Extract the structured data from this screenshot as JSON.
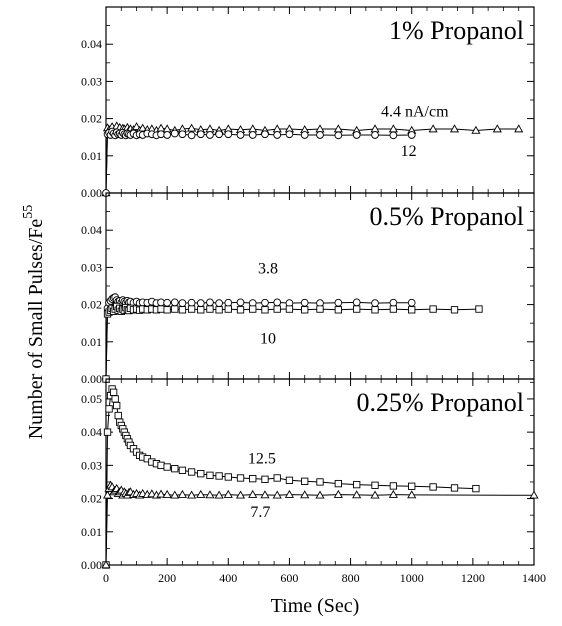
{
  "chart_data": {
    "type": "scatter",
    "xlabel": "Time (Sec)",
    "ylabel_main": "Number of Small Pulses/Fe",
    "ylabel_sup": "55",
    "xlim": [
      0,
      1400
    ],
    "xticks": [
      "0",
      "200",
      "400",
      "600",
      "800",
      "1000",
      "1200",
      "1400"
    ],
    "xtick_values": [
      0,
      200,
      400,
      600,
      800,
      1000,
      1200,
      1400
    ],
    "panels": [
      {
        "title": "1%  Propanol",
        "ylim": [
          0,
          0.05
        ],
        "yticks": [
          "0.00",
          "0.01",
          "0.02",
          "0.03",
          "0.04"
        ],
        "ytick_values": [
          0,
          0.01,
          0.02,
          0.03,
          0.04
        ],
        "annotations": [
          {
            "text": "4.4 nA/cm",
            "x": 1010,
            "y": 0.0205
          },
          {
            "text": "12",
            "x": 990,
            "y": 0.01
          }
        ],
        "series": [
          {
            "marker": "triangle",
            "x": [
              0,
              5,
              10,
              15,
              20,
              25,
              30,
              35,
              40,
              45,
              50,
              55,
              60,
              65,
              70,
              75,
              80,
              90,
              100,
              110,
              120,
              135,
              150,
              165,
              180,
              200,
              225,
              250,
              280,
              310,
              340,
              370,
              400,
              440,
              480,
              520,
              560,
              600,
              650,
              700,
              760,
              820,
              880,
              940,
              1000,
              1070,
              1140,
              1210,
              1280,
              1350
            ],
            "y": [
              0.0,
              0.0175,
              0.017,
              0.0168,
              0.0178,
              0.0165,
              0.0172,
              0.018,
              0.0168,
              0.0176,
              0.0165,
              0.0174,
              0.0172,
              0.0166,
              0.0176,
              0.0168,
              0.0172,
              0.017,
              0.0178,
              0.0168,
              0.0174,
              0.017,
              0.0172,
              0.0168,
              0.0174,
              0.0172,
              0.0168,
              0.0172,
              0.0174,
              0.017,
              0.0172,
              0.0168,
              0.0172,
              0.017,
              0.0172,
              0.0168,
              0.0172,
              0.0172,
              0.017,
              0.0172,
              0.0172,
              0.0168,
              0.0172,
              0.0172,
              0.0168,
              0.0172,
              0.0172,
              0.0168,
              0.0172,
              0.0172
            ]
          },
          {
            "marker": "circle",
            "x": [
              0,
              5,
              10,
              15,
              20,
              25,
              30,
              35,
              40,
              45,
              50,
              55,
              60,
              65,
              70,
              75,
              80,
              90,
              100,
              110,
              120,
              135,
              150,
              165,
              180,
              200,
              225,
              250,
              280,
              310,
              340,
              370,
              400,
              440,
              480,
              520,
              560,
              600,
              650,
              700,
              760,
              820,
              880,
              940,
              1000
            ],
            "y": [
              0.0,
              0.0158,
              0.0162,
              0.0156,
              0.0165,
              0.016,
              0.0155,
              0.0163,
              0.0158,
              0.016,
              0.0156,
              0.0162,
              0.0158,
              0.0155,
              0.016,
              0.0158,
              0.0156,
              0.016,
              0.0155,
              0.0158,
              0.0156,
              0.016,
              0.0158,
              0.0155,
              0.0158,
              0.0156,
              0.016,
              0.0158,
              0.0155,
              0.0158,
              0.0156,
              0.0158,
              0.0158,
              0.0156,
              0.0156,
              0.0158,
              0.0156,
              0.0158,
              0.0156,
              0.0156,
              0.0155,
              0.0156,
              0.0156,
              0.0155,
              0.0156
            ]
          }
        ]
      },
      {
        "title": "0.5%  Propanol",
        "ylim": [
          0,
          0.05
        ],
        "yticks": [
          "0.00",
          "0.01",
          "0.02",
          "0.03",
          "0.04"
        ],
        "ytick_values": [
          0,
          0.01,
          0.02,
          0.03,
          0.04
        ],
        "annotations": [
          {
            "text": "3.8",
            "x": 530,
            "y": 0.0283
          },
          {
            "text": "10",
            "x": 530,
            "y": 0.0095
          }
        ],
        "series": [
          {
            "marker": "circle",
            "x": [
              0,
              5,
              10,
              15,
              20,
              25,
              30,
              35,
              40,
              45,
              50,
              55,
              60,
              65,
              70,
              75,
              80,
              90,
              100,
              110,
              120,
              135,
              150,
              165,
              180,
              200,
              225,
              250,
              280,
              310,
              340,
              370,
              400,
              440,
              480,
              520,
              560,
              600,
              650,
              700,
              760,
              820,
              880,
              940,
              1000
            ],
            "y": [
              0.0,
              0.019,
              0.0205,
              0.021,
              0.0215,
              0.0218,
              0.022,
              0.0212,
              0.0208,
              0.021,
              0.0205,
              0.0212,
              0.0208,
              0.0205,
              0.021,
              0.0206,
              0.0208,
              0.0205,
              0.0208,
              0.0204,
              0.0206,
              0.0205,
              0.0208,
              0.0204,
              0.0206,
              0.0205,
              0.0206,
              0.0204,
              0.0205,
              0.0204,
              0.0206,
              0.0204,
              0.0205,
              0.0206,
              0.0204,
              0.0205,
              0.0206,
              0.0204,
              0.0205,
              0.0204,
              0.0205,
              0.0206,
              0.0204,
              0.0205,
              0.0205
            ]
          },
          {
            "marker": "square",
            "x": [
              0,
              5,
              10,
              15,
              20,
              25,
              30,
              35,
              40,
              45,
              50,
              55,
              60,
              65,
              70,
              75,
              80,
              90,
              100,
              110,
              120,
              135,
              150,
              165,
              180,
              200,
              225,
              250,
              280,
              310,
              340,
              370,
              400,
              440,
              480,
              520,
              560,
              600,
              650,
              700,
              760,
              820,
              880,
              940,
              1000,
              1070,
              1140,
              1220
            ],
            "y": [
              0.0,
              0.0175,
              0.018,
              0.0185,
              0.019,
              0.0182,
              0.0188,
              0.0195,
              0.0185,
              0.019,
              0.0182,
              0.0188,
              0.0185,
              0.0192,
              0.0186,
              0.0184,
              0.019,
              0.0186,
              0.0188,
              0.0185,
              0.0188,
              0.0186,
              0.0188,
              0.0186,
              0.0188,
              0.0186,
              0.0188,
              0.0186,
              0.0188,
              0.0186,
              0.0188,
              0.0186,
              0.0188,
              0.0186,
              0.0188,
              0.0186,
              0.0188,
              0.0188,
              0.0186,
              0.0188,
              0.0186,
              0.0188,
              0.0186,
              0.0188,
              0.0186,
              0.0188,
              0.0186,
              0.0188
            ]
          }
        ]
      },
      {
        "title": "0.25%  Propanol",
        "ylim": [
          0,
          0.056
        ],
        "yticks": [
          "0.00",
          "0.01",
          "0.02",
          "0.03",
          "0.04",
          "0.05"
        ],
        "ytick_values": [
          0,
          0.01,
          0.02,
          0.03,
          0.04,
          0.05
        ],
        "annotations": [
          {
            "text": "12.5",
            "x": 510,
            "y": 0.0305
          },
          {
            "text": "7.7",
            "x": 505,
            "y": 0.0145
          }
        ],
        "series": [
          {
            "marker": "square",
            "x": [
              0,
              5,
              10,
              15,
              20,
              25,
              30,
              35,
              40,
              45,
              50,
              55,
              60,
              65,
              70,
              75,
              80,
              90,
              100,
              110,
              120,
              135,
              150,
              165,
              180,
              200,
              225,
              250,
              280,
              310,
              340,
              370,
              400,
              440,
              480,
              520,
              560,
              600,
              650,
              700,
              760,
              820,
              880,
              940,
              1000,
              1070,
              1140,
              1210
            ],
            "y": [
              0.0,
              0.04,
              0.047,
              0.051,
              0.053,
              0.052,
              0.05,
              0.048,
              0.045,
              0.043,
              0.042,
              0.041,
              0.04,
              0.039,
              0.038,
              0.037,
              0.036,
              0.035,
              0.034,
              0.033,
              0.0325,
              0.032,
              0.031,
              0.0305,
              0.03,
              0.0295,
              0.029,
              0.0285,
              0.028,
              0.0275,
              0.027,
              0.0268,
              0.0265,
              0.0262,
              0.026,
              0.0258,
              0.0262,
              0.0255,
              0.0252,
              0.025,
              0.0245,
              0.0242,
              0.024,
              0.0238,
              0.0237,
              0.0235,
              0.0232,
              0.023
            ]
          },
          {
            "marker": "triangle",
            "x": [
              0,
              5,
              10,
              15,
              20,
              25,
              30,
              35,
              40,
              45,
              50,
              55,
              60,
              65,
              70,
              75,
              80,
              90,
              100,
              110,
              120,
              135,
              150,
              165,
              180,
              200,
              225,
              250,
              280,
              310,
              340,
              370,
              400,
              440,
              480,
              520,
              560,
              600,
              650,
              700,
              760,
              820,
              880,
              940,
              1000,
              1400
            ],
            "y": [
              0.0,
              0.021,
              0.023,
              0.024,
              0.0235,
              0.022,
              0.0225,
              0.023,
              0.0215,
              0.022,
              0.0225,
              0.021,
              0.022,
              0.0215,
              0.021,
              0.0218,
              0.022,
              0.0212,
              0.0215,
              0.021,
              0.0215,
              0.0212,
              0.0214,
              0.021,
              0.0213,
              0.0212,
              0.021,
              0.0212,
              0.021,
              0.0212,
              0.0211,
              0.021,
              0.0212,
              0.021,
              0.0212,
              0.0211,
              0.021,
              0.0212,
              0.0211,
              0.021,
              0.0212,
              0.0211,
              0.021,
              0.0212,
              0.0211,
              0.021
            ]
          }
        ]
      }
    ]
  }
}
